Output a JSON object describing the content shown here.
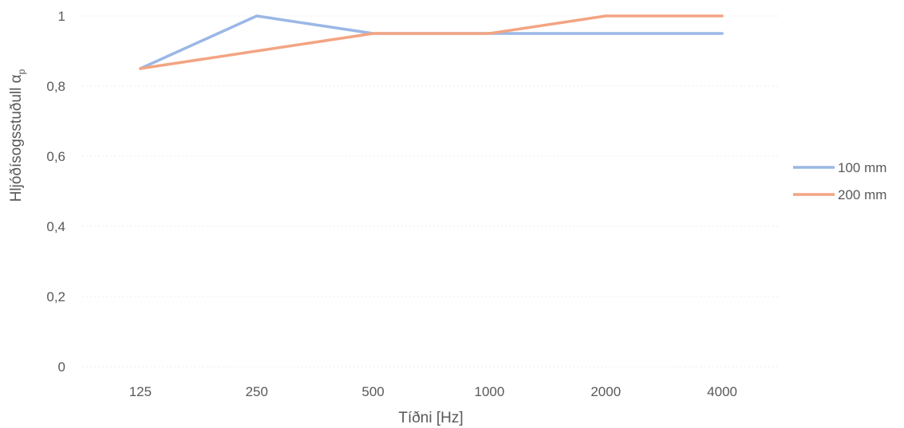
{
  "chart_data": {
    "type": "line",
    "categories": [
      "125",
      "250",
      "500",
      "1000",
      "2000",
      "4000"
    ],
    "series": [
      {
        "name": "100 mm",
        "values": [
          0.85,
          1.0,
          0.95,
          0.95,
          0.95,
          0.95
        ],
        "color": "#9ab7e6"
      },
      {
        "name": "200 mm",
        "values": [
          0.85,
          0.9,
          0.95,
          0.95,
          1.0,
          1.0
        ],
        "color": "#f3a482"
      }
    ],
    "xlabel": "Tíðni [Hz]",
    "ylabel": "Hljóðísogsstuðull α",
    "ylabel_subscript": "p",
    "ylim": [
      0,
      1
    ],
    "yticks": [
      "0",
      "0,2",
      "0,4",
      "0,6",
      "0,8",
      "1"
    ],
    "grid": true,
    "legend_position": "right"
  }
}
